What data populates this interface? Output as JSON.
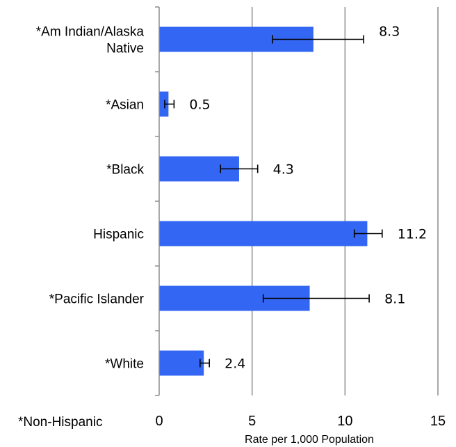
{
  "chart_data": {
    "type": "bar",
    "orientation": "horizontal",
    "categories": [
      "*Am Indian/Alaska Native",
      "*Asian",
      "*Black",
      "Hispanic",
      "*Pacific Islander",
      "*White"
    ],
    "category_lines": [
      [
        "*Am Indian/Alaska",
        "Native"
      ],
      [
        "*Asian"
      ],
      [
        "*Black"
      ],
      [
        "Hispanic"
      ],
      [
        "*Pacific Islander"
      ],
      [
        "*White"
      ]
    ],
    "values": [
      8.3,
      0.5,
      4.3,
      11.2,
      8.1,
      2.4
    ],
    "value_labels": [
      "8.3",
      "0.5",
      "4.3",
      "11.2",
      "8.1",
      "2.4"
    ],
    "error_low": [
      6.1,
      0.3,
      3.3,
      10.5,
      5.6,
      2.2
    ],
    "error_high": [
      11.0,
      0.8,
      5.3,
      12.0,
      11.3,
      2.7
    ],
    "xlabel": "Rate per 1,000 Population",
    "ylabel": "",
    "xlim": [
      0,
      15
    ],
    "xticks": [
      0,
      5,
      10,
      15
    ],
    "xtick_labels": [
      "0",
      "5",
      "10",
      "15"
    ],
    "grid": true,
    "legend": "none",
    "bar_color": "#3366f2",
    "footnote": "*Non-Hispanic"
  }
}
